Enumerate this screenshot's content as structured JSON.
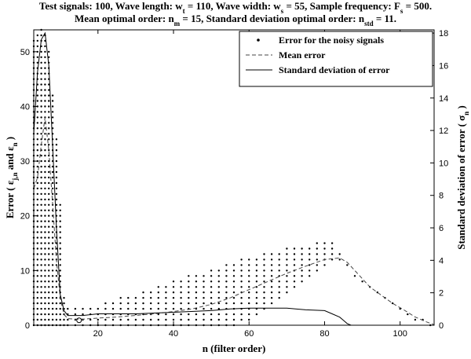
{
  "chart_data": {
    "type": "scatter",
    "title_lines": [
      [
        {
          "t": "Test signals: 100, Wave length: w"
        },
        {
          "t": "t",
          "sub": true
        },
        {
          "t": " = 110, Wave width: w"
        },
        {
          "t": "s",
          "sub": true
        },
        {
          "t": " = 55, Sample frequency: F"
        },
        {
          "t": "s",
          "sub": true
        },
        {
          "t": " = 500."
        }
      ],
      [
        {
          "t": "Mean optimal order: n"
        },
        {
          "t": "m",
          "sub": true
        },
        {
          "t": " = 15, Standard deviation optimal order: n"
        },
        {
          "t": "std",
          "sub": true
        },
        {
          "t": " = 11."
        }
      ]
    ],
    "xlabel": "n (filter order)",
    "ylabel_left": [
      {
        "t": "Error ( ε"
      },
      {
        "t": "j,n",
        "sub": true
      },
      {
        "t": " and ε"
      },
      {
        "t": "n",
        "sub": true
      },
      {
        "t": " )"
      }
    ],
    "ylabel_right": [
      {
        "t": "Standard deviation of error ( σ"
      },
      {
        "t": "n",
        "sub": true
      },
      {
        "t": " )"
      }
    ],
    "xlim": [
      3,
      109
    ],
    "ylim_left": [
      0,
      54
    ],
    "ylim_right": [
      0,
      18.2
    ],
    "xticks": [
      20,
      40,
      60,
      80,
      100
    ],
    "yticks_left": [
      0,
      10,
      20,
      30,
      40,
      50
    ],
    "yticks_right": [
      0,
      2,
      4,
      6,
      8,
      10,
      12,
      14,
      16,
      18
    ],
    "grid": false,
    "legend_position": "top-right",
    "legend": [
      {
        "label": "Error for the noisy signals",
        "style": "dots"
      },
      {
        "label": "Mean error",
        "style": "dashed"
      },
      {
        "label": "Standard deviation of error",
        "style": "solid"
      }
    ],
    "mean_error": {
      "name": "Mean error",
      "axis": "left",
      "x": [
        3,
        4,
        5,
        6,
        7,
        8,
        9,
        10,
        11,
        12,
        14,
        16,
        18,
        20,
        25,
        30,
        35,
        40,
        45,
        50,
        55,
        60,
        65,
        70,
        75,
        80,
        84,
        86,
        88,
        90,
        92,
        95,
        98,
        101,
        104,
        107,
        109
      ],
      "y": [
        25,
        27,
        33,
        38,
        32,
        22,
        12,
        5,
        2,
        1.2,
        1.1,
        1.1,
        1.2,
        1.3,
        1.5,
        1.8,
        2.1,
        2.5,
        3.0,
        3.8,
        5.0,
        6.5,
        8.0,
        9.5,
        10.8,
        12.0,
        12.3,
        11.5,
        10.0,
        8.5,
        7.0,
        5.5,
        4.0,
        2.8,
        1.5,
        0.6,
        0.1
      ]
    },
    "std_error": {
      "name": "Standard deviation of error",
      "axis": "right",
      "x": [
        3,
        4,
        5,
        6,
        7,
        8,
        9,
        10,
        11,
        12,
        14,
        16,
        20,
        25,
        30,
        40,
        50,
        55,
        60,
        65,
        70,
        75,
        80,
        82,
        84,
        85,
        86,
        87
      ],
      "y": [
        11.8,
        15.6,
        17.6,
        18.0,
        16.0,
        11.0,
        6.0,
        1.9,
        0.9,
        0.6,
        0.6,
        0.6,
        0.7,
        0.7,
        0.7,
        0.8,
        0.9,
        1.0,
        1.05,
        1.05,
        1.05,
        0.95,
        0.9,
        0.7,
        0.5,
        0.3,
        0.1,
        0.0
      ]
    },
    "optimal_marker": {
      "x": 15,
      "y": 0.9
    },
    "noisy_error_band": {
      "name": "Error for the noisy signals",
      "axis": "left",
      "note_rows_every": 1,
      "x": [
        3,
        4,
        5,
        6,
        7,
        8,
        9,
        10,
        11,
        12,
        14,
        16,
        18,
        20,
        22,
        24,
        26,
        28,
        30,
        32,
        34,
        36,
        38,
        40,
        42,
        44,
        46,
        48,
        50,
        52,
        54,
        56,
        58,
        60,
        62,
        64,
        66,
        68,
        70,
        72,
        74,
        76,
        78,
        80,
        82,
        84,
        86,
        88,
        90,
        92,
        94,
        96,
        98,
        100,
        102,
        104,
        106,
        108
      ],
      "y_min": [
        0,
        0,
        0,
        0,
        0,
        0,
        0,
        0,
        0,
        0,
        0,
        0,
        0,
        0,
        0,
        0,
        0,
        0,
        0,
        0,
        0,
        0,
        0,
        0,
        0,
        0,
        0,
        0,
        0,
        0,
        0,
        0,
        1,
        1,
        2,
        3,
        4,
        5,
        6,
        7,
        8,
        9,
        10,
        11,
        12,
        12,
        11,
        9,
        8,
        7,
        6,
        5,
        4,
        3,
        2,
        1,
        1,
        0
      ],
      "y_max": [
        52,
        53,
        54,
        53,
        50,
        42,
        34,
        22,
        5,
        3,
        3,
        3,
        3,
        3,
        4,
        4,
        5,
        5,
        5,
        6,
        6,
        7,
        7,
        8,
        8,
        9,
        9,
        9,
        10,
        10,
        11,
        11,
        12,
        12,
        12,
        13,
        13,
        13,
        14,
        14,
        14,
        14,
        15,
        15,
        15,
        13,
        11,
        9,
        8,
        7,
        6,
        5,
        4,
        3,
        2,
        1,
        1,
        0
      ]
    }
  }
}
